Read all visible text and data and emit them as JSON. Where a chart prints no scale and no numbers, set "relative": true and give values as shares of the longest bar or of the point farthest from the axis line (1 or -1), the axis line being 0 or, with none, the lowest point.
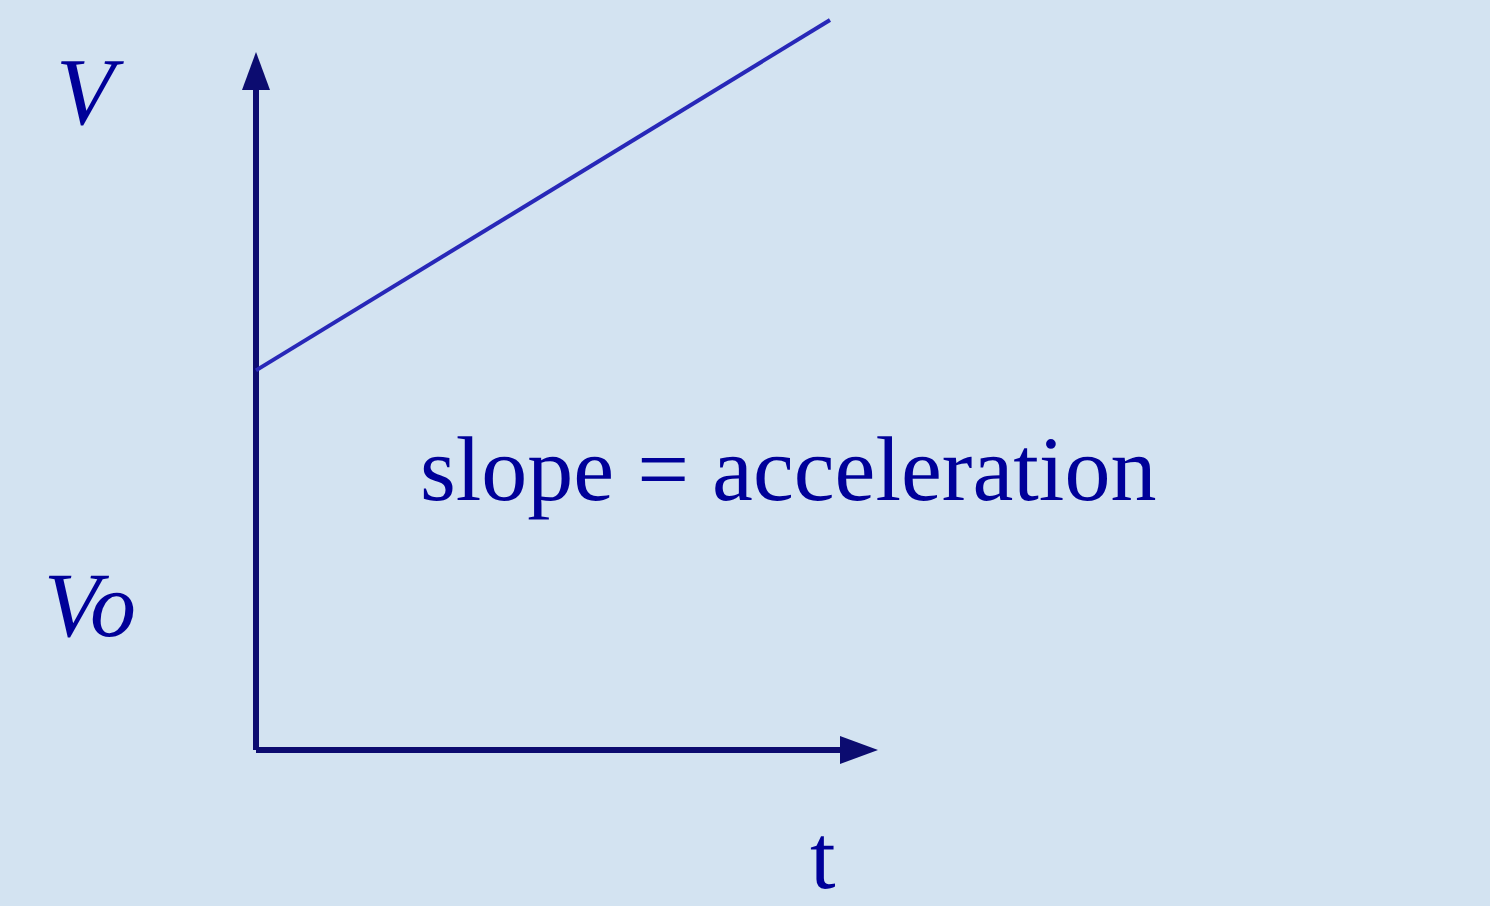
{
  "chart_data": {
    "type": "line",
    "relative": true,
    "ylabel": "V",
    "categories": [
      null,
      null
    ],
    "series": [
      {
        "color": "#2828b8",
        "values": [
          0.52,
          1
        ]
      }
    ],
    "annotations": [
      "Vo",
      "slope = acceleration",
      "t"
    ],
    "grid": false,
    "line_style": "solid"
  }
}
